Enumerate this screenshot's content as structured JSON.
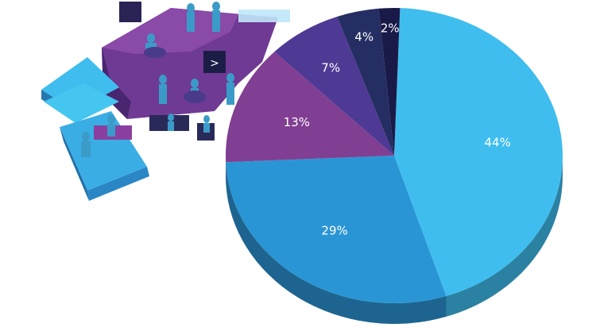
{
  "chart_data": {
    "type": "pie",
    "categories": [
      "",
      "",
      "",
      "",
      "",
      ""
    ],
    "values": [
      44,
      29,
      13,
      7,
      4,
      2
    ],
    "labels": [
      "44%",
      "29%",
      "13%",
      "7%",
      "4%",
      "2%"
    ],
    "colors": [
      "#3fbdee",
      "#2a95d4",
      "#803f92",
      "#4e3994",
      "#252e63",
      "#1a1a49"
    ],
    "title": "",
    "legend": "none",
    "style": "3d-exploded"
  },
  "illustration": {
    "screen_glyph": ">"
  }
}
